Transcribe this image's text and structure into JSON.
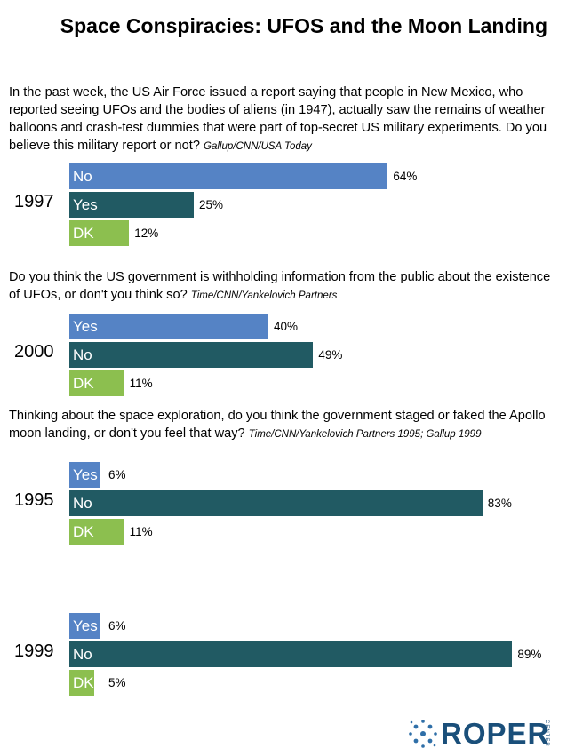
{
  "title": "Space Conspiracies: UFOS and the Moon Landing",
  "colors": {
    "No-blue": "#5583c5",
    "dark": "#215a63",
    "dk": "#8cbf4f"
  },
  "questions": [
    {
      "text": "In the past week, the US Air Force issued a report saying that people in New Mexico, who reported seeing UFOs and the bodies of aliens (in 1947), actually saw the remains of weather balloons and crash-test dummies that were part of top-secret US military experiments. Do you believe this military report or not?",
      "source": "Gallup/CNN/USA Today"
    },
    {
      "text": "Do you think the US government is withholding information from the public about the existence of UFOs, or don't you think so?",
      "source": "Time/CNN/Yankelovich Partners"
    },
    {
      "text": "Thinking about the space exploration, do you think the government staged or faked the Apollo moon landing, or don't you feel that way?",
      "source": "Time/CNN/Yankelovich Partners 1995; Gallup 1999"
    }
  ],
  "chart_data": [
    {
      "type": "bar",
      "year": "1997",
      "categories": [
        "No",
        "Yes",
        "DK"
      ],
      "values": [
        64,
        25,
        12
      ],
      "labels": [
        "64%",
        "25%",
        "12%"
      ],
      "colors": [
        "#5583c5",
        "#215a63",
        "#8cbf4f"
      ]
    },
    {
      "type": "bar",
      "year": "2000",
      "categories": [
        "Yes",
        "No",
        "DK"
      ],
      "values": [
        40,
        49,
        11
      ],
      "labels": [
        "40%",
        "49%",
        "11%"
      ],
      "colors": [
        "#5583c5",
        "#215a63",
        "#8cbf4f"
      ]
    },
    {
      "type": "bar",
      "year": "1995",
      "categories": [
        "Yes",
        "No",
        "DK"
      ],
      "values": [
        6,
        83,
        11
      ],
      "labels": [
        "6%",
        "83%",
        "11%"
      ],
      "colors": [
        "#5583c5",
        "#215a63",
        "#8cbf4f"
      ]
    },
    {
      "type": "bar",
      "year": "1999",
      "categories": [
        "Yes",
        "No",
        "DK"
      ],
      "values": [
        6,
        89,
        5
      ],
      "labels": [
        "6%",
        "89%",
        "5%"
      ],
      "colors": [
        "#5583c5",
        "#215a63",
        "#8cbf4f"
      ]
    }
  ],
  "logo": {
    "word": "ROPER",
    "sub": "CENTER"
  }
}
